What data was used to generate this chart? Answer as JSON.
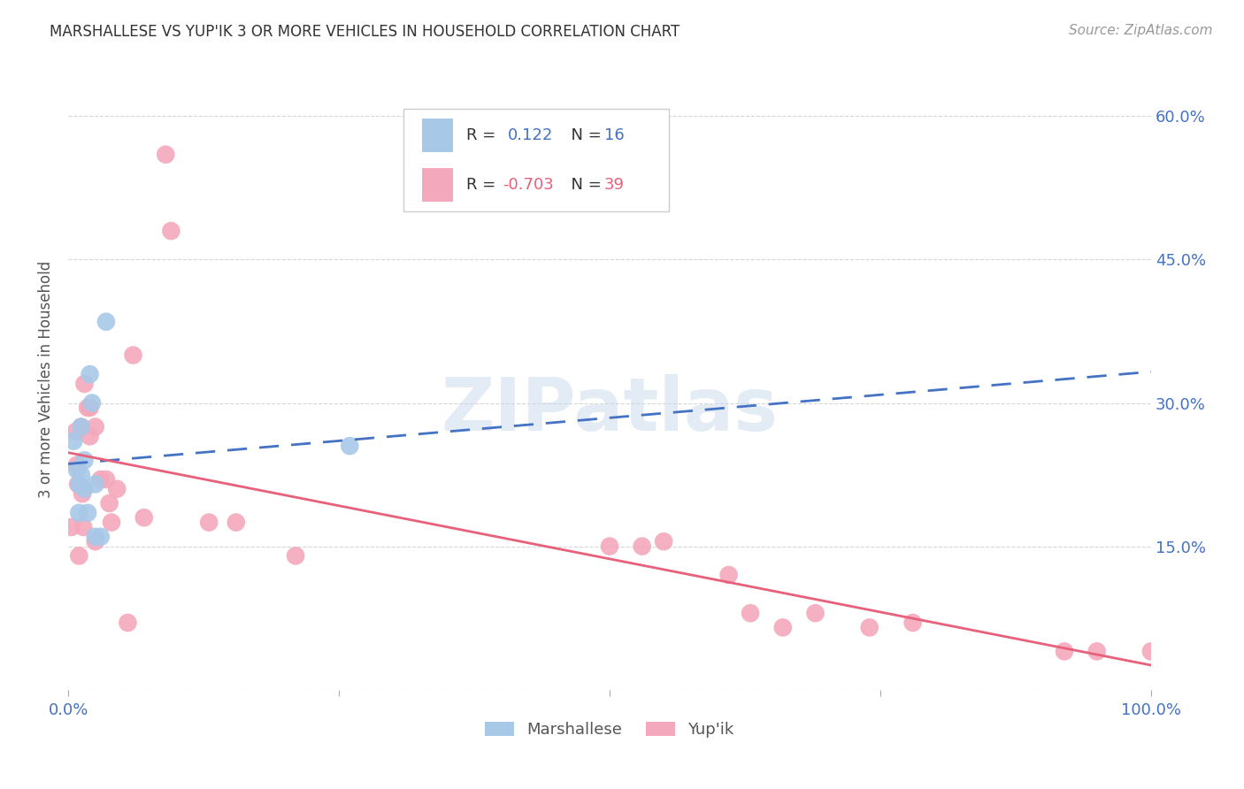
{
  "title": "MARSHALLESE VS YUP'IK 3 OR MORE VEHICLES IN HOUSEHOLD CORRELATION CHART",
  "source": "Source: ZipAtlas.com",
  "ylabel": "3 or more Vehicles in Household",
  "watermark": "ZIPatlas",
  "marshallese_R": 0.122,
  "marshallese_N": 16,
  "yupik_R": -0.703,
  "yupik_N": 39,
  "xlim": [
    0.0,
    1.0
  ],
  "ylim": [
    0.0,
    0.65
  ],
  "marshallese_color": "#A8C8E8",
  "yupik_color": "#F4A8BC",
  "marshallese_line_color": "#4472C4",
  "yupik_line_color": "#E8607A",
  "marshallese_x": [
    0.005,
    0.008,
    0.01,
    0.01,
    0.012,
    0.012,
    0.015,
    0.015,
    0.018,
    0.02,
    0.022,
    0.025,
    0.025,
    0.03,
    0.035,
    0.26
  ],
  "marshallese_y": [
    0.26,
    0.23,
    0.215,
    0.185,
    0.275,
    0.225,
    0.24,
    0.21,
    0.185,
    0.33,
    0.3,
    0.215,
    0.16,
    0.16,
    0.385,
    0.255
  ],
  "yupik_x": [
    0.003,
    0.007,
    0.008,
    0.009,
    0.01,
    0.012,
    0.013,
    0.014,
    0.015,
    0.018,
    0.02,
    0.02,
    0.025,
    0.025,
    0.03,
    0.035,
    0.038,
    0.04,
    0.045,
    0.055,
    0.06,
    0.07,
    0.09,
    0.095,
    0.13,
    0.155,
    0.21,
    0.5,
    0.53,
    0.55,
    0.61,
    0.63,
    0.66,
    0.69,
    0.74,
    0.78,
    0.92,
    0.95,
    1.0
  ],
  "yupik_y": [
    0.17,
    0.27,
    0.235,
    0.215,
    0.14,
    0.275,
    0.205,
    0.17,
    0.32,
    0.295,
    0.295,
    0.265,
    0.275,
    0.155,
    0.22,
    0.22,
    0.195,
    0.175,
    0.21,
    0.07,
    0.35,
    0.18,
    0.56,
    0.48,
    0.175,
    0.175,
    0.14,
    0.15,
    0.15,
    0.155,
    0.12,
    0.08,
    0.065,
    0.08,
    0.065,
    0.07,
    0.04,
    0.04,
    0.04
  ],
  "background_color": "#FFFFFF",
  "grid_color": "#CCCCCC",
  "title_color": "#333333",
  "tick_color": "#4472C4",
  "legend_text_color": "#555555"
}
